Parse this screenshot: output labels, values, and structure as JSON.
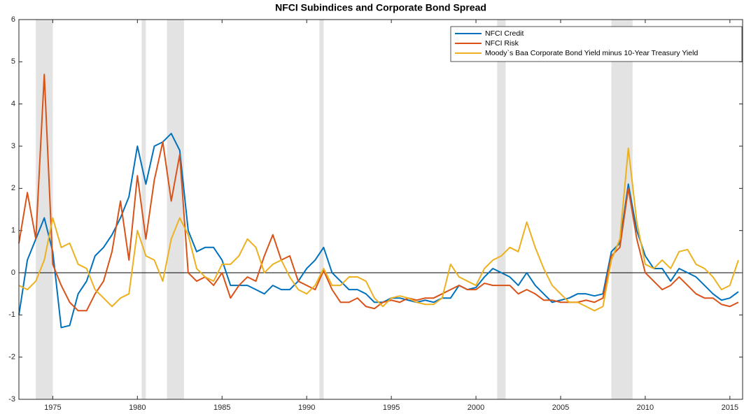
{
  "chart_data": {
    "type": "line",
    "title": "NFCI Subindices and Corporate Bond Spread",
    "x": [
      1973,
      1973.5,
      1974,
      1974.5,
      1975,
      1975.5,
      1976,
      1976.5,
      1977,
      1977.5,
      1978,
      1978.5,
      1979,
      1979.5,
      1980,
      1980.5,
      1981,
      1981.5,
      1982,
      1982.5,
      1983,
      1983.5,
      1984,
      1984.5,
      1985,
      1985.5,
      1986,
      1986.5,
      1987,
      1987.5,
      1988,
      1988.5,
      1989,
      1989.5,
      1990,
      1990.5,
      1991,
      1991.5,
      1992,
      1992.5,
      1993,
      1993.5,
      1994,
      1994.5,
      1995,
      1995.5,
      1996,
      1996.5,
      1997,
      1997.5,
      1998,
      1998.5,
      1999,
      1999.5,
      2000,
      2000.5,
      2001,
      2001.5,
      2002,
      2002.5,
      2003,
      2003.5,
      2004,
      2004.5,
      2005,
      2005.5,
      2006,
      2006.5,
      2007,
      2007.5,
      2008,
      2008.5,
      2009,
      2009.5,
      2010,
      2010.5,
      2011,
      2011.5,
      2012,
      2012.5,
      2013,
      2013.5,
      2014,
      2014.5,
      2015,
      2015.5
    ],
    "series": [
      {
        "name": "NFCI Credit",
        "color": "#0072BD",
        "values": [
          -1.0,
          0.3,
          0.8,
          1.3,
          0.5,
          -1.3,
          -1.25,
          -0.5,
          -0.2,
          0.4,
          0.6,
          0.9,
          1.3,
          1.8,
          3.0,
          2.1,
          3.0,
          3.1,
          3.3,
          2.9,
          1.0,
          0.5,
          0.6,
          0.6,
          0.3,
          -0.3,
          -0.3,
          -0.3,
          -0.4,
          -0.5,
          -0.3,
          -0.4,
          -0.4,
          -0.2,
          0.1,
          0.3,
          0.6,
          0.0,
          -0.2,
          -0.4,
          -0.4,
          -0.5,
          -0.7,
          -0.7,
          -0.6,
          -0.6,
          -0.65,
          -0.7,
          -0.65,
          -0.7,
          -0.6,
          -0.6,
          -0.3,
          -0.4,
          -0.35,
          -0.1,
          0.1,
          0.0,
          -0.1,
          -0.3,
          0.0,
          -0.3,
          -0.5,
          -0.7,
          -0.65,
          -0.6,
          -0.5,
          -0.5,
          -0.55,
          -0.5,
          0.5,
          0.7,
          2.1,
          1.0,
          0.4,
          0.1,
          0.1,
          -0.2,
          0.1,
          0.0,
          -0.1,
          -0.3,
          -0.5,
          -0.65,
          -0.6,
          -0.45
        ]
      },
      {
        "name": "NFCI Risk",
        "color": "#D95319",
        "values": [
          0.7,
          1.9,
          0.8,
          4.7,
          0.2,
          -0.3,
          -0.7,
          -0.9,
          -0.9,
          -0.5,
          -0.2,
          0.5,
          1.7,
          0.3,
          2.3,
          0.8,
          2.2,
          3.1,
          1.7,
          2.8,
          0.0,
          -0.2,
          -0.1,
          -0.3,
          0.0,
          -0.6,
          -0.3,
          -0.1,
          -0.2,
          0.4,
          0.9,
          0.3,
          0.4,
          -0.2,
          -0.3,
          -0.4,
          0.05,
          -0.4,
          -0.7,
          -0.7,
          -0.6,
          -0.8,
          -0.85,
          -0.7,
          -0.65,
          -0.7,
          -0.6,
          -0.65,
          -0.6,
          -0.6,
          -0.5,
          -0.4,
          -0.3,
          -0.4,
          -0.4,
          -0.25,
          -0.3,
          -0.3,
          -0.3,
          -0.5,
          -0.4,
          -0.5,
          -0.65,
          -0.65,
          -0.7,
          -0.7,
          -0.7,
          -0.65,
          -0.7,
          -0.6,
          0.4,
          0.6,
          2.0,
          0.8,
          0.0,
          -0.2,
          -0.4,
          -0.3,
          -0.1,
          -0.3,
          -0.5,
          -0.6,
          -0.6,
          -0.75,
          -0.8,
          -0.7
        ]
      },
      {
        "name": "Moody`s Baa Corporate Bond Yield minus 10-Year Treasury Yield",
        "color": "#EDB120",
        "values": [
          -0.3,
          -0.4,
          -0.2,
          0.3,
          1.3,
          0.6,
          0.7,
          0.2,
          0.1,
          -0.4,
          -0.6,
          -0.8,
          -0.6,
          -0.5,
          1.0,
          0.4,
          0.3,
          -0.2,
          0.8,
          1.3,
          0.9,
          0.1,
          -0.1,
          -0.2,
          0.2,
          0.2,
          0.4,
          0.8,
          0.6,
          0.0,
          0.2,
          0.3,
          -0.1,
          -0.4,
          -0.5,
          -0.3,
          0.1,
          -0.3,
          -0.3,
          -0.1,
          -0.1,
          -0.2,
          -0.6,
          -0.8,
          -0.6,
          -0.55,
          -0.6,
          -0.7,
          -0.75,
          -0.75,
          -0.6,
          0.2,
          -0.1,
          -0.2,
          -0.3,
          0.1,
          0.3,
          0.4,
          0.6,
          0.5,
          1.2,
          0.6,
          0.1,
          -0.3,
          -0.5,
          -0.7,
          -0.7,
          -0.8,
          -0.9,
          -0.8,
          0.3,
          0.8,
          2.95,
          1.2,
          0.2,
          0.1,
          0.3,
          0.1,
          0.5,
          0.55,
          0.2,
          0.1,
          -0.1,
          -0.4,
          -0.3,
          0.3
        ]
      }
    ],
    "xlim": [
      1973,
      2015.75
    ],
    "ylim": [
      -3,
      6
    ],
    "xticks": [
      1975,
      1980,
      1985,
      1990,
      1995,
      2000,
      2005,
      2010,
      2015
    ],
    "yticks": [
      -3,
      -2,
      -1,
      0,
      1,
      2,
      3,
      4,
      5,
      6
    ],
    "recessions": [
      [
        1974,
        1975
      ],
      [
        1980.25,
        1980.5
      ],
      [
        1981.75,
        1982.75
      ],
      [
        1990.75,
        1991
      ],
      [
        2001.25,
        2001.75
      ],
      [
        2008,
        2009.25
      ]
    ],
    "reference_line": 0,
    "legend": "upper right"
  }
}
